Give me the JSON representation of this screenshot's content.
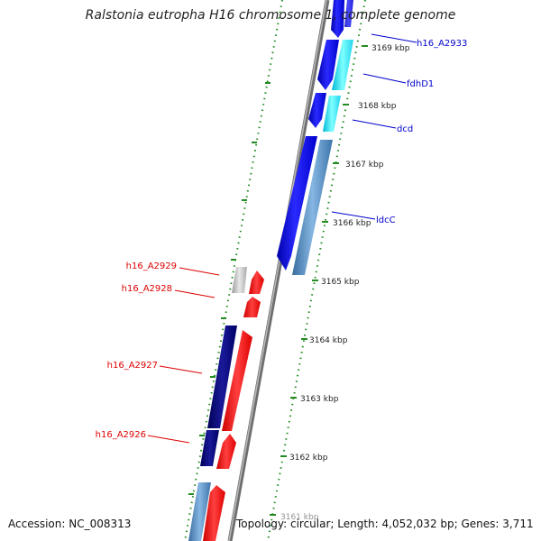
{
  "title": "Ralstonia eutropha H16 chromosome 1, complete genome",
  "accession": "Accession: NC_008313",
  "topology": "Topology: circular; Length: 4,052,032 bp; Genes: 3,711",
  "colors": {
    "forward_label": "#0000cc",
    "reverse_label": "#dd0000",
    "backbone": "#777777",
    "tick": "#228b22"
  },
  "ticks": [
    "3161 kbp",
    "3162 kbp",
    "3163 kbp",
    "3164 kbp",
    "3165 kbp",
    "3166 kbp",
    "3167 kbp",
    "3168 kbp",
    "3169 kbp"
  ],
  "genes_forward": [
    "h16_A2933",
    "fdhD1",
    "dcd",
    "ldcC"
  ],
  "genes_reverse": [
    "h16_A2929",
    "h16_A2928",
    "h16_A2927",
    "h16_A2926"
  ]
}
